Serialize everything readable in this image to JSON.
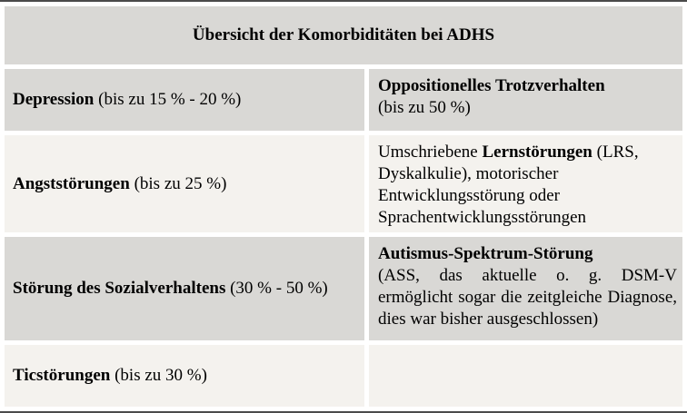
{
  "colors": {
    "row_gray": "#d9d8d5",
    "row_light": "#f4f2ee",
    "rule_dark": "#4a4a4a",
    "gutter_white": "#ffffff"
  },
  "table": {
    "title": "Übersicht der Komorbiditäten bei ADHS",
    "rows": [
      {
        "left": {
          "pre": "",
          "bold": "Depression",
          "rest": " (bis zu 15 % - 20 %)"
        },
        "right": {
          "pre": "",
          "bold": "Oppositionelles Trotzverhalten",
          "rest": "(bis zu 50 %)"
        }
      },
      {
        "left": {
          "pre": "",
          "bold": "Angststörungen",
          "rest": " (bis zu 25 %)"
        },
        "right": {
          "pre": "Umschriebene ",
          "bold": "Lernstörungen",
          "rest": " (LRS, Dyskalkulie), motorischer Entwicklungsstörung oder Sprachentwicklungsstörungen"
        }
      },
      {
        "left": {
          "pre": "",
          "bold": "Störung des Sozialverhaltens",
          "rest": " (30 % - 50 %)"
        },
        "right": {
          "pre": "",
          "bold": "Autismus-Spektrum-Störung",
          "rest": "(ASS, das aktuelle o. g. DSM-V ermöglicht sogar die zeitgleiche Diagnose, dies war bisher ausgeschlossen)"
        }
      },
      {
        "left": {
          "pre": "",
          "bold": "Ticstörungen",
          "rest": " (bis zu 30 %)"
        },
        "right": {
          "pre": "",
          "bold": "",
          "rest": ""
        }
      }
    ]
  }
}
